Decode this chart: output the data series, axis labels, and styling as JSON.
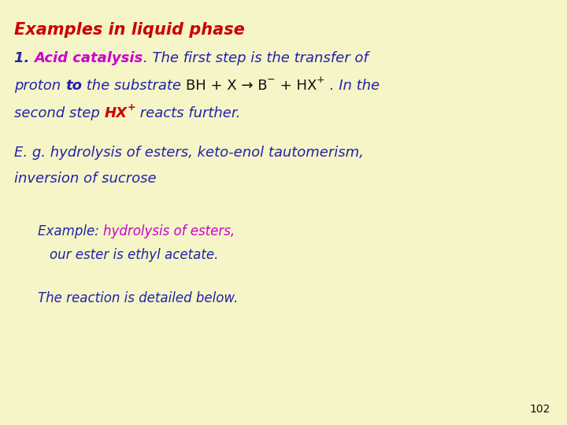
{
  "background_color": "#f5f5c8",
  "page_number": "102",
  "blue": "#2222aa",
  "magenta": "#cc00cc",
  "red": "#cc0000",
  "dark": "#111111",
  "title_fs": 15,
  "body_fs": 13,
  "indent_fs": 12
}
